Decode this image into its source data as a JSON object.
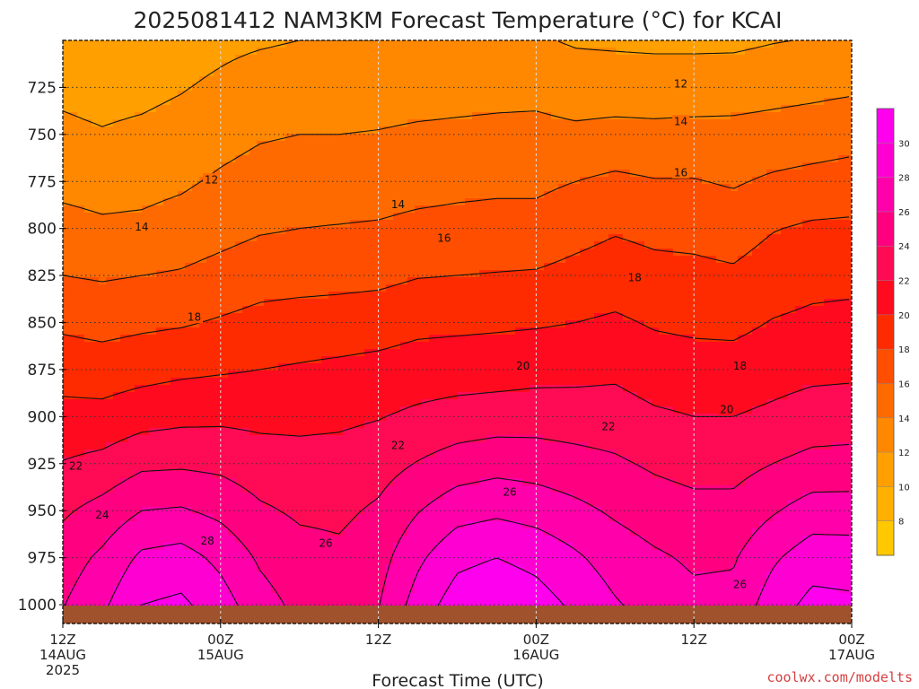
{
  "chart_data": {
    "type": "heatmap",
    "title": "2025081412 NAM3KM Forecast Temperature (°C) for KCAI",
    "xlabel": "Forecast Time (UTC)",
    "credit": "coolwx.com/modelts",
    "y_axis": {
      "quantity": "pressure (hPa)",
      "range": [
        1010,
        700
      ],
      "ticks": [
        725,
        750,
        775,
        800,
        825,
        850,
        875,
        900,
        925,
        950,
        975,
        1000
      ],
      "tick_labels": [
        "725",
        "750",
        "775",
        "800",
        "825",
        "850",
        "875",
        "900",
        "925",
        "950",
        "975",
        "1000"
      ]
    },
    "x_axis": {
      "range": [
        "2025-08-14 12Z",
        "2025-08-17 00Z"
      ],
      "ticks": [
        {
          "hour": 0,
          "line1": "12Z",
          "line2": "14AUG",
          "line3": "2025"
        },
        {
          "hour": 12,
          "line1": "00Z",
          "line2": "15AUG",
          "line3": ""
        },
        {
          "hour": 24,
          "line1": "12Z",
          "line2": "",
          "line3": ""
        },
        {
          "hour": 36,
          "line1": "00Z",
          "line2": "16AUG",
          "line3": ""
        },
        {
          "hour": 48,
          "line1": "12Z",
          "line2": "",
          "line3": ""
        },
        {
          "hour": 60,
          "line1": "00Z",
          "line2": "17AUG",
          "line3": ""
        }
      ]
    },
    "grid": true,
    "colorbar": {
      "placement": "right",
      "levels": [
        8,
        10,
        12,
        14,
        16,
        18,
        20,
        22,
        24,
        26,
        28,
        30
      ],
      "labels": [
        "8",
        "10",
        "12",
        "14",
        "16",
        "18",
        "20",
        "22",
        "24",
        "26",
        "28",
        "30"
      ],
      "colors": [
        "#ffc800",
        "#ffb000",
        "#ff9f00",
        "#ff8800",
        "#ff6a00",
        "#ff4e00",
        "#ff2b00",
        "#ff0a1e",
        "#ff0b55",
        "#ff0080",
        "#ff00aa",
        "#ff00d2",
        "#ff00ee"
      ]
    },
    "ground_color": "#a0522d",
    "temperature_profiles": [
      {
        "hour": 0,
        "p": [
          700,
          725,
          750,
          775,
          800,
          825,
          850,
          875,
          900,
          925,
          950,
          975,
          1000
        ],
        "t": [
          11.2,
          11.7,
          12.3,
          13.5,
          14.6,
          16.0,
          17.6,
          19.2,
          20.6,
          22.1,
          23.7,
          25.0,
          25.9
        ]
      },
      {
        "hour": 3,
        "p": [
          700,
          725,
          750,
          775,
          800,
          825,
          850,
          875,
          900,
          925,
          950,
          975,
          1000
        ],
        "t": [
          11.0,
          11.5,
          12.1,
          13.3,
          14.3,
          15.8,
          17.3,
          19.0,
          20.6,
          22.6,
          24.7,
          26.4,
          27.6
        ]
      },
      {
        "hour": 6,
        "p": [
          700,
          725,
          750,
          775,
          800,
          825,
          850,
          875,
          900,
          925,
          950,
          975,
          1000
        ],
        "t": [
          11.1,
          11.6,
          12.3,
          13.4,
          14.4,
          16.0,
          17.6,
          19.3,
          21.2,
          23.6,
          26.0,
          28.4,
          30.0
        ]
      },
      {
        "hour": 9,
        "p": [
          700,
          725,
          750,
          775,
          800,
          825,
          850,
          875,
          900,
          925,
          950,
          975,
          1000
        ],
        "t": [
          11.3,
          11.9,
          12.6,
          13.7,
          14.8,
          16.2,
          17.8,
          19.6,
          21.5,
          23.7,
          26.2,
          28.8,
          30.4
        ]
      },
      {
        "hour": 12,
        "p": [
          700,
          725,
          750,
          775,
          800,
          825,
          850,
          875,
          900,
          925,
          950,
          975,
          1000
        ],
        "t": [
          11.6,
          12.3,
          13.3,
          14.3,
          15.3,
          16.7,
          18.2,
          19.8,
          21.6,
          23.5,
          25.5,
          27.5,
          28.9
        ]
      },
      {
        "hour": 15,
        "p": [
          700,
          725,
          750,
          775,
          800,
          825,
          850,
          875,
          900,
          925,
          950,
          975,
          1000
        ],
        "t": [
          11.8,
          12.8,
          13.8,
          14.8,
          15.8,
          17.2,
          18.6,
          20.0,
          21.5,
          22.9,
          24.3,
          25.7,
          26.8
        ]
      },
      {
        "hour": 18,
        "p": [
          700,
          725,
          750,
          775,
          800,
          825,
          850,
          875,
          900,
          925,
          950,
          975,
          1000
        ],
        "t": [
          12.0,
          13.0,
          14.0,
          15.0,
          16.0,
          17.3,
          18.8,
          20.2,
          21.5,
          22.7,
          23.7,
          24.7,
          25.5
        ]
      },
      {
        "hour": 21,
        "p": [
          700,
          725,
          750,
          775,
          800,
          825,
          850,
          875,
          900,
          925,
          950,
          975,
          1000
        ],
        "t": [
          12.0,
          13.0,
          14.0,
          15.0,
          16.1,
          17.4,
          18.9,
          20.4,
          21.6,
          22.8,
          23.6,
          24.4,
          25.1
        ]
      },
      {
        "hour": 24,
        "p": [
          700,
          725,
          750,
          775,
          800,
          825,
          850,
          875,
          900,
          925,
          950,
          975,
          1000
        ],
        "t": [
          12.0,
          13.1,
          14.1,
          15.1,
          16.2,
          17.5,
          19.1,
          20.6,
          21.9,
          23.2,
          24.3,
          25.2,
          25.9
        ]
      },
      {
        "hour": 27,
        "p": [
          700,
          725,
          750,
          775,
          800,
          825,
          850,
          875,
          900,
          925,
          950,
          975,
          1000
        ],
        "t": [
          12.1,
          13.2,
          14.3,
          15.3,
          16.5,
          17.9,
          19.5,
          20.9,
          22.4,
          24.1,
          25.9,
          27.6,
          28.9
        ]
      },
      {
        "hour": 30,
        "p": [
          700,
          725,
          750,
          775,
          800,
          825,
          850,
          875,
          900,
          925,
          950,
          975,
          1000
        ],
        "t": [
          12.2,
          13.3,
          14.4,
          15.5,
          16.6,
          18.0,
          19.6,
          21.0,
          22.8,
          24.9,
          27.2,
          29.5,
          31.0
        ]
      },
      {
        "hour": 33,
        "p": [
          700,
          725,
          750,
          775,
          800,
          825,
          850,
          875,
          900,
          925,
          950,
          975,
          1000
        ],
        "t": [
          12.3,
          13.4,
          14.5,
          15.6,
          16.7,
          18.1,
          19.7,
          21.1,
          23.0,
          25.3,
          27.6,
          30.0,
          31.6
        ]
      },
      {
        "hour": 36,
        "p": [
          700,
          725,
          750,
          775,
          800,
          825,
          850,
          875,
          900,
          925,
          950,
          975,
          1000
        ],
        "t": [
          12.2,
          13.4,
          14.6,
          15.6,
          16.7,
          18.2,
          19.8,
          21.3,
          23.1,
          25.1,
          27.2,
          29.4,
          30.9
        ]
      },
      {
        "hour": 39,
        "p": [
          700,
          725,
          750,
          775,
          800,
          825,
          850,
          875,
          900,
          925,
          950,
          975,
          1000
        ],
        "t": [
          11.8,
          13.0,
          14.4,
          16.0,
          17.3,
          18.6,
          20.0,
          21.4,
          23.0,
          24.7,
          26.5,
          28.3,
          29.6
        ]
      },
      {
        "hour": 42,
        "p": [
          700,
          725,
          750,
          775,
          800,
          825,
          850,
          875,
          900,
          925,
          950,
          975,
          1000
        ],
        "t": [
          11.7,
          13.0,
          14.6,
          16.4,
          17.8,
          19.0,
          20.3,
          21.6,
          22.9,
          24.3,
          25.7,
          27.1,
          28.2
        ]
      },
      {
        "hour": 45,
        "p": [
          700,
          725,
          750,
          775,
          800,
          825,
          850,
          875,
          900,
          925,
          950,
          975,
          1000
        ],
        "t": [
          11.6,
          13.0,
          14.5,
          16.1,
          17.5,
          18.6,
          19.8,
          21.0,
          22.3,
          23.7,
          25.0,
          26.3,
          27.2
        ]
      },
      {
        "hour": 48,
        "p": [
          700,
          725,
          750,
          775,
          800,
          825,
          850,
          875,
          900,
          925,
          950,
          975,
          1000
        ],
        "t": [
          11.6,
          13.0,
          14.6,
          16.1,
          17.4,
          18.5,
          19.6,
          20.8,
          22.0,
          23.3,
          24.6,
          25.7,
          26.5
        ]
      },
      {
        "hour": 51,
        "p": [
          700,
          725,
          750,
          775,
          800,
          825,
          850,
          875,
          900,
          925,
          950,
          975,
          1000
        ],
        "t": [
          11.6,
          13.1,
          14.6,
          15.8,
          17.1,
          18.3,
          19.5,
          20.8,
          22.0,
          23.3,
          24.6,
          25.8,
          26.6
        ]
      },
      {
        "hour": 54,
        "p": [
          700,
          725,
          750,
          775,
          800,
          825,
          850,
          875,
          900,
          925,
          950,
          975,
          1000
        ],
        "t": [
          11.9,
          13.3,
          14.8,
          16.3,
          17.9,
          19.0,
          20.1,
          21.2,
          22.4,
          24.0,
          25.8,
          27.7,
          29.0
        ]
      },
      {
        "hour": 57,
        "p": [
          700,
          725,
          750,
          775,
          800,
          825,
          850,
          875,
          900,
          925,
          950,
          975,
          1000
        ],
        "t": [
          12.1,
          13.5,
          15.0,
          16.6,
          18.3,
          19.4,
          20.4,
          21.5,
          22.9,
          24.6,
          26.9,
          29.1,
          30.6
        ]
      },
      {
        "hour": 60,
        "p": [
          700,
          725,
          750,
          775,
          800,
          825,
          850,
          875,
          900,
          925,
          950,
          975,
          1000
        ],
        "t": [
          12.3,
          13.7,
          15.3,
          16.8,
          18.4,
          19.5,
          20.5,
          21.6,
          23.0,
          24.7,
          26.9,
          29.0,
          30.4
        ]
      }
    ],
    "contour_labels": [
      {
        "text": "12",
        "hour": 11.3,
        "p": 774
      },
      {
        "text": "12",
        "hour": 47.0,
        "p": 723
      },
      {
        "text": "14",
        "hour": 6.0,
        "p": 799
      },
      {
        "text": "14",
        "hour": 25.5,
        "p": 787
      },
      {
        "text": "14",
        "hour": 47.0,
        "p": 743
      },
      {
        "text": "16",
        "hour": 29.0,
        "p": 805
      },
      {
        "text": "16",
        "hour": 47.0,
        "p": 770
      },
      {
        "text": "18",
        "hour": 10.0,
        "p": 847
      },
      {
        "text": "18",
        "hour": 43.5,
        "p": 826
      },
      {
        "text": "18",
        "hour": 51.5,
        "p": 873
      },
      {
        "text": "20",
        "hour": 35.0,
        "p": 873
      },
      {
        "text": "20",
        "hour": 50.5,
        "p": 896
      },
      {
        "text": "22",
        "hour": 1.0,
        "p": 926
      },
      {
        "text": "22",
        "hour": 25.5,
        "p": 915
      },
      {
        "text": "22",
        "hour": 41.5,
        "p": 905
      },
      {
        "text": "24",
        "hour": 3.0,
        "p": 952
      },
      {
        "text": "26",
        "hour": 20.0,
        "p": 967
      },
      {
        "text": "26",
        "hour": 34.0,
        "p": 940
      },
      {
        "text": "26",
        "hour": 51.5,
        "p": 989
      },
      {
        "text": "28",
        "hour": 11.0,
        "p": 966
      }
    ]
  }
}
